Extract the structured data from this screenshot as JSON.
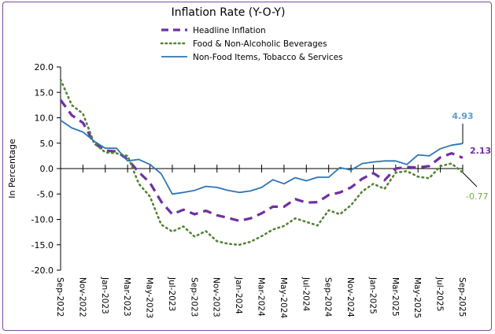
{
  "chart_data": {
    "type": "line",
    "title": "Inflation Rate (Y-O-Y)",
    "ylabel": "In Percentage",
    "xlabel": "",
    "ylim": [
      -20,
      20
    ],
    "ytick_step": 5,
    "yticks": [
      "20.0",
      "15.0",
      "10.0",
      "5.0",
      "0.0",
      "-5.0",
      "-10.0",
      "-15.0",
      "-20.0"
    ],
    "legend_position": "top-center",
    "x": [
      "Sep-2022",
      "Oct-2022",
      "Nov-2022",
      "Dec-2022",
      "Jan-2023",
      "Feb-2023",
      "Mar-2023",
      "Apr-2023",
      "May-2023",
      "Jun-2023",
      "Jul-2023",
      "Aug-2023",
      "Sep-2023",
      "Oct-2023",
      "Nov-2023",
      "Dec-2023",
      "Jan-2024",
      "Feb-2024",
      "Mar-2024",
      "Apr-2024",
      "May-2024",
      "Jun-2024",
      "Jul-2024",
      "Aug-2024",
      "Sep-2024",
      "Oct-2024",
      "Nov-2024",
      "Dec-2024",
      "Jan-2025",
      "Feb-2025",
      "Mar-2025",
      "Apr-2025",
      "May-2025",
      "Jun-2025",
      "Jul-2025",
      "Aug-2025",
      "Sep-2025"
    ],
    "xtick_labels": [
      "Sep-2022",
      "Nov-2022",
      "Jan-2023",
      "Mar-2023",
      "May-2023",
      "Jul-2023",
      "Sep-2023",
      "Nov-2023",
      "Jan-2024",
      "Mar-2024",
      "May-2024",
      "Jul-2024",
      "Sep-2024",
      "Nov-2024",
      "Jan-2025",
      "Mar-2025",
      "May-2025",
      "Jul-2025",
      "Sep-2025"
    ],
    "series": [
      {
        "name": "Headline Inflation",
        "color": "#7030a0",
        "style": "dash",
        "values": [
          13.5,
          10.5,
          9.0,
          5.0,
          3.5,
          3.4,
          1.8,
          -0.7,
          -2.8,
          -6.5,
          -9.0,
          -8.1,
          -9.0,
          -8.3,
          -9.2,
          -9.7,
          -10.3,
          -9.8,
          -8.8,
          -7.5,
          -7.5,
          -6.0,
          -6.7,
          -6.6,
          -5.2,
          -4.7,
          -3.7,
          -2.0,
          -0.9,
          -2.3,
          0.0,
          0.3,
          0.2,
          0.5,
          2.2,
          3.0,
          2.13
        ],
        "end_label": "2.13"
      },
      {
        "name": "Food & Non-Alcoholic Beverages",
        "color": "#548235",
        "style": "dot",
        "values": [
          17.5,
          12.5,
          10.8,
          5.0,
          3.2,
          3.0,
          2.5,
          -3.0,
          -5.5,
          -11.0,
          -12.4,
          -11.4,
          -13.4,
          -12.3,
          -14.3,
          -14.8,
          -15.0,
          -14.4,
          -13.3,
          -12.0,
          -11.3,
          -9.8,
          -10.5,
          -11.2,
          -8.2,
          -9.0,
          -7.2,
          -4.5,
          -3.0,
          -4.0,
          -0.8,
          -0.5,
          -1.6,
          -1.9,
          0.5,
          1.0,
          -0.77
        ],
        "end_label": "-0.77"
      },
      {
        "name": "Non-Food Items, Tobacco & Services",
        "color": "#2e75b6",
        "style": "solid",
        "values": [
          9.5,
          8.0,
          7.2,
          5.4,
          4.0,
          4.0,
          1.5,
          1.8,
          0.8,
          -1.0,
          -5.0,
          -4.7,
          -4.3,
          -3.5,
          -3.7,
          -4.3,
          -4.7,
          -4.4,
          -3.7,
          -2.2,
          -3.0,
          -1.8,
          -2.4,
          -1.7,
          -1.7,
          0.2,
          -0.3,
          1.0,
          1.3,
          1.5,
          1.5,
          0.8,
          2.7,
          2.5,
          3.9,
          4.6,
          4.93
        ],
        "end_label": "4.93"
      }
    ]
  }
}
